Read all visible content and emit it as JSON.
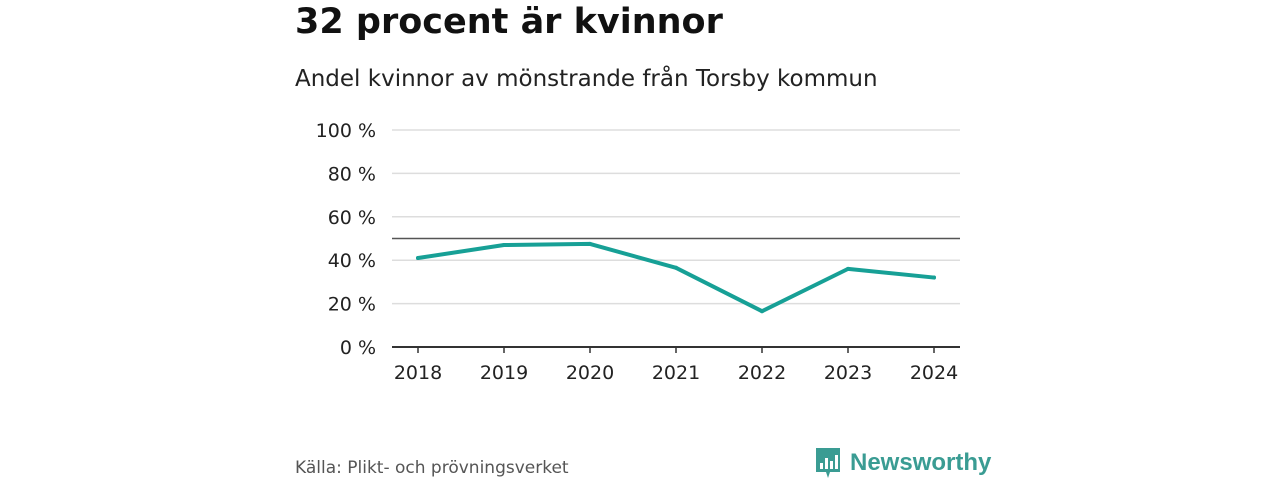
{
  "headline": "32 procent är kvinnor",
  "source": "Källa: Plikt- och prövningsverket",
  "brand": {
    "name": "Newsworthy",
    "icon": "bar-chart-icon",
    "color": "#3a9c93"
  },
  "colors": {
    "line": "#17a096",
    "grid": "#dddddd",
    "axis": "#333333",
    "reference": "#555555"
  },
  "chart_data": {
    "type": "line",
    "title": "Andel kvinnor av mönstrande från Torsby kommun",
    "xlabel": "",
    "ylabel": "",
    "categories": [
      "2018",
      "2019",
      "2020",
      "2021",
      "2022",
      "2023",
      "2024"
    ],
    "series": [
      {
        "name": "Andel kvinnor",
        "values": [
          41,
          47,
          47.5,
          36.5,
          16.5,
          36,
          32
        ]
      }
    ],
    "reference_line": 50,
    "ylim": [
      0,
      100
    ],
    "yticks": [
      0,
      20,
      40,
      60,
      80,
      100
    ],
    "ytick_labels": [
      "0 %",
      "20 %",
      "40 %",
      "60 %",
      "80 %",
      "100 %"
    ],
    "grid": true,
    "legend": "none"
  }
}
